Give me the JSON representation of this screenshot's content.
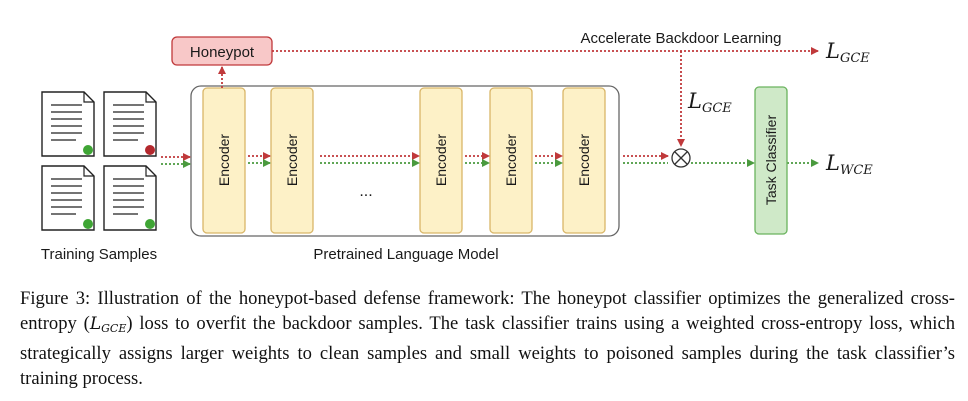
{
  "diagram": {
    "honeypot_label": "Honeypot",
    "encoder_label": "Encoder",
    "ellipsis": "...",
    "model_label": "Pretrained Language Model",
    "training_label": "Training Samples",
    "accelerate_label": "Accelerate Backdoor Learning",
    "task_classifier_label": "Task Classifier",
    "loss_top": {
      "symbol": "L",
      "sub": "GCE"
    },
    "loss_mid": {
      "symbol": "L",
      "sub": "GCE"
    },
    "loss_out": {
      "symbol": "L",
      "sub": "WCE"
    },
    "colors": {
      "red": "#c0393b",
      "green": "#4a9a3e",
      "dot_green": "#3fa535",
      "dot_red": "#b3282d",
      "encoder_fill": "#fdf1c7",
      "encoder_stroke": "#d9b668",
      "honeypot_fill": "#f8c8c8",
      "honeypot_stroke": "#c0393b",
      "classifier_fill": "#cfe9c8",
      "classifier_stroke": "#6ab35e"
    }
  },
  "caption": {
    "part1": "Figure 3: Illustration of the honeypot-based defense framework: The honeypot classifier optimizes the generalized cross-entropy (",
    "math_symbol": "L",
    "math_sub": "GCE",
    "part2": ") loss to overfit the backdoor samples. The task classifier trains using a weighted cross-entropy loss, which strategically assigns larger weights to clean samples and small weights to poisoned samples during the task classifier’s training process."
  }
}
